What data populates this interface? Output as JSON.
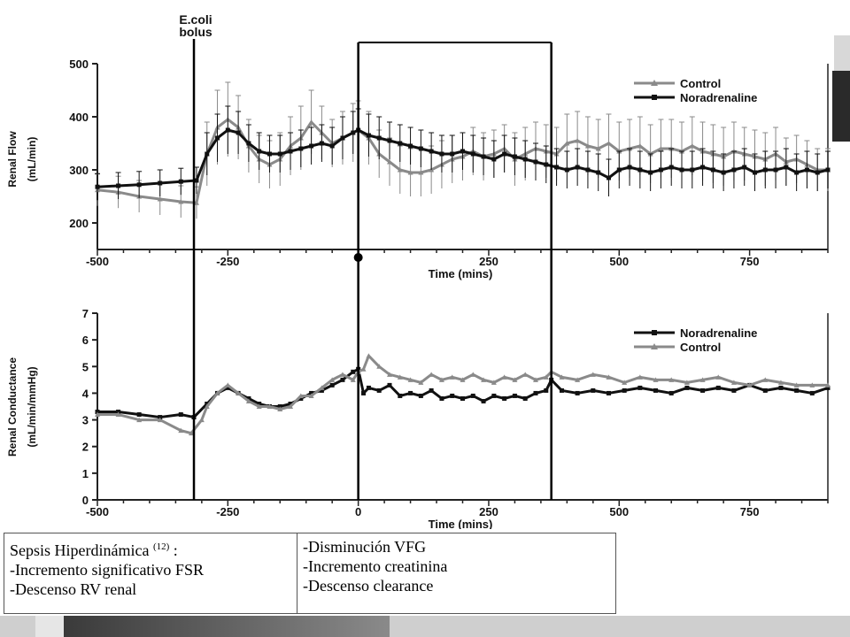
{
  "chart_data": [
    {
      "type": "line",
      "ylabel": "Renal Flow",
      "yunit": "(mL/min)",
      "xlabel": "Time (mins)",
      "xlim": [
        -500,
        900
      ],
      "ylim": [
        150,
        500
      ],
      "yticks": [
        "200",
        "300",
        "400",
        "500"
      ],
      "xticks": [
        "-500",
        "-250",
        "250",
        "500",
        "750"
      ],
      "error_bars": true,
      "legend": "top-right",
      "series": [
        {
          "name": "Control",
          "marker": "triangle",
          "color": "#8a8a8a",
          "x": [
            -500,
            -460,
            -420,
            -380,
            -340,
            -310,
            -290,
            -270,
            -250,
            -230,
            -210,
            -190,
            -170,
            -150,
            -130,
            -110,
            -90,
            -70,
            -50,
            -30,
            -10,
            0,
            20,
            40,
            60,
            80,
            100,
            120,
            140,
            160,
            180,
            200,
            220,
            240,
            260,
            280,
            300,
            320,
            340,
            360,
            380,
            400,
            420,
            440,
            460,
            480,
            500,
            520,
            540,
            560,
            580,
            600,
            620,
            640,
            660,
            680,
            700,
            720,
            740,
            760,
            780,
            800,
            820,
            840,
            860,
            880,
            900
          ],
          "y": [
            262,
            258,
            250,
            245,
            240,
            238,
            330,
            380,
            395,
            380,
            345,
            320,
            310,
            320,
            345,
            360,
            390,
            370,
            350,
            360,
            370,
            375,
            360,
            330,
            315,
            300,
            295,
            295,
            300,
            310,
            320,
            325,
            335,
            325,
            330,
            340,
            320,
            330,
            340,
            335,
            330,
            350,
            355,
            345,
            340,
            350,
            335,
            340,
            345,
            330,
            340,
            340,
            335,
            345,
            335,
            330,
            325,
            335,
            330,
            325,
            320,
            330,
            315,
            320,
            310,
            300,
            300
          ],
          "error": [
            30,
            30,
            30,
            30,
            30,
            30,
            60,
            70,
            70,
            60,
            50,
            45,
            45,
            50,
            55,
            60,
            60,
            50,
            45,
            50,
            55,
            55,
            50,
            45,
            45,
            45,
            45,
            45,
            45,
            45,
            45,
            45,
            45,
            45,
            45,
            45,
            50,
            50,
            50,
            50,
            50,
            55,
            55,
            55,
            55,
            55,
            55,
            55,
            55,
            55,
            55,
            55,
            55,
            55,
            55,
            55,
            55,
            55,
            50,
            50,
            50,
            50,
            45,
            45,
            45,
            40,
            40
          ]
        },
        {
          "name": "Noradrenaline",
          "marker": "square",
          "color": "#111111",
          "x": [
            -500,
            -460,
            -420,
            -380,
            -340,
            -310,
            -290,
            -270,
            -250,
            -230,
            -210,
            -190,
            -170,
            -150,
            -130,
            -110,
            -90,
            -70,
            -50,
            -30,
            -10,
            0,
            20,
            40,
            60,
            80,
            100,
            120,
            140,
            160,
            180,
            200,
            220,
            240,
            260,
            280,
            300,
            320,
            340,
            360,
            380,
            400,
            420,
            440,
            460,
            480,
            500,
            520,
            540,
            560,
            580,
            600,
            620,
            640,
            660,
            680,
            700,
            720,
            740,
            760,
            780,
            800,
            820,
            840,
            860,
            880,
            900
          ],
          "y": [
            268,
            270,
            272,
            275,
            278,
            280,
            330,
            360,
            375,
            370,
            350,
            335,
            330,
            330,
            335,
            340,
            345,
            350,
            345,
            360,
            370,
            375,
            365,
            360,
            355,
            350,
            345,
            340,
            335,
            330,
            330,
            335,
            330,
            325,
            320,
            330,
            325,
            320,
            315,
            310,
            305,
            300,
            305,
            300,
            295,
            285,
            300,
            305,
            300,
            295,
            300,
            305,
            300,
            300,
            305,
            300,
            295,
            300,
            305,
            295,
            300,
            300,
            305,
            295,
            300,
            295,
            300
          ],
          "error": [
            25,
            25,
            25,
            25,
            25,
            25,
            40,
            45,
            45,
            40,
            35,
            35,
            35,
            35,
            35,
            35,
            35,
            35,
            35,
            40,
            40,
            40,
            40,
            40,
            35,
            35,
            35,
            35,
            35,
            35,
            35,
            35,
            35,
            35,
            35,
            35,
            35,
            35,
            35,
            35,
            35,
            35,
            35,
            35,
            35,
            35,
            35,
            35,
            35,
            35,
            35,
            35,
            35,
            35,
            35,
            35,
            35,
            35,
            35,
            35,
            35,
            35,
            35,
            35,
            35,
            35,
            35
          ]
        }
      ],
      "annotations": {
        "bolus_label": "E.coli",
        "bolus_label2": "bolus",
        "bolus_x": -315,
        "box_x": [
          0,
          370
        ]
      }
    },
    {
      "type": "line",
      "ylabel": "Renal Conductance",
      "yunit": "(mL/min/mmHg)",
      "xlabel": "Time (mins)",
      "xlim": [
        -500,
        900
      ],
      "ylim": [
        0,
        7
      ],
      "yticks": [
        "0",
        "1",
        "2",
        "3",
        "4",
        "5",
        "6",
        "7"
      ],
      "xticks": [
        "-500",
        "-250",
        "0",
        "250",
        "500",
        "750"
      ],
      "legend": "top-right",
      "series": [
        {
          "name": "Noradrenaline",
          "marker": "square",
          "color": "#111111",
          "x": [
            -500,
            -460,
            -420,
            -380,
            -340,
            -315,
            -290,
            -270,
            -250,
            -230,
            -210,
            -190,
            -170,
            -150,
            -130,
            -110,
            -90,
            -70,
            -50,
            -30,
            -10,
            0,
            10,
            20,
            40,
            60,
            80,
            100,
            120,
            140,
            160,
            180,
            200,
            220,
            240,
            260,
            280,
            300,
            320,
            340,
            360,
            370,
            390,
            420,
            450,
            480,
            510,
            540,
            570,
            600,
            630,
            660,
            690,
            720,
            750,
            780,
            810,
            840,
            870,
            900
          ],
          "y": [
            3.3,
            3.3,
            3.2,
            3.1,
            3.2,
            3.1,
            3.6,
            4.0,
            4.2,
            4.0,
            3.8,
            3.6,
            3.5,
            3.5,
            3.6,
            3.8,
            4.0,
            4.1,
            4.3,
            4.5,
            4.8,
            4.9,
            4.0,
            4.2,
            4.1,
            4.3,
            3.9,
            4.0,
            3.9,
            4.1,
            3.8,
            3.9,
            3.8,
            3.9,
            3.7,
            3.9,
            3.8,
            3.9,
            3.8,
            4.0,
            4.1,
            4.5,
            4.1,
            4.0,
            4.1,
            4.0,
            4.1,
            4.2,
            4.1,
            4.0,
            4.2,
            4.1,
            4.2,
            4.1,
            4.3,
            4.1,
            4.2,
            4.1,
            4.0,
            4.2
          ]
        },
        {
          "name": "Control",
          "marker": "triangle",
          "color": "#8a8a8a",
          "x": [
            -500,
            -460,
            -420,
            -380,
            -340,
            -320,
            -300,
            -290,
            -270,
            -250,
            -230,
            -210,
            -190,
            -170,
            -150,
            -130,
            -110,
            -90,
            -70,
            -50,
            -30,
            -10,
            0,
            10,
            20,
            40,
            60,
            80,
            100,
            120,
            140,
            160,
            180,
            200,
            220,
            240,
            260,
            280,
            300,
            320,
            340,
            360,
            370,
            390,
            420,
            450,
            480,
            510,
            540,
            570,
            600,
            630,
            660,
            690,
            720,
            750,
            780,
            810,
            840,
            870,
            900
          ],
          "y": [
            3.2,
            3.2,
            3.0,
            3.0,
            2.6,
            2.5,
            3.0,
            3.5,
            4.0,
            4.3,
            4.0,
            3.7,
            3.5,
            3.5,
            3.4,
            3.5,
            3.9,
            3.9,
            4.2,
            4.5,
            4.7,
            4.5,
            4.8,
            4.9,
            5.4,
            5.0,
            4.7,
            4.6,
            4.5,
            4.4,
            4.7,
            4.5,
            4.6,
            4.5,
            4.7,
            4.5,
            4.4,
            4.6,
            4.5,
            4.7,
            4.5,
            4.6,
            4.8,
            4.6,
            4.5,
            4.7,
            4.6,
            4.4,
            4.6,
            4.5,
            4.5,
            4.4,
            4.5,
            4.6,
            4.4,
            4.3,
            4.5,
            4.4,
            4.3,
            4.3,
            4.3
          ]
        }
      ]
    }
  ],
  "notes": {
    "left": {
      "line1": "Sepsis Hiperdinámica ",
      "ref": "(12)",
      "line1_tail": " :",
      "line2": "-Incremento significativo FSR",
      "line3": "-Descenso RV renal"
    },
    "right": {
      "line1": "-Disminución VFG",
      "line2": "-Incremento creatinina",
      "line3": "-Descenso clearance"
    }
  }
}
